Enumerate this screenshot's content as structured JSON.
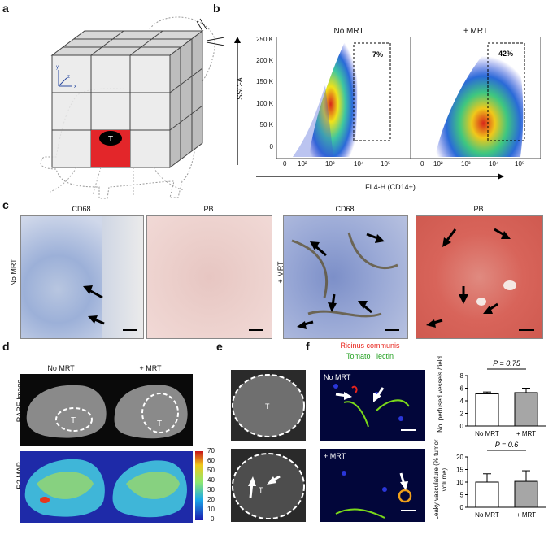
{
  "panels": {
    "a": {
      "letter": "a",
      "tumor_label": "T",
      "axis_labels": [
        "x",
        "y",
        "z"
      ]
    },
    "b": {
      "letter": "b",
      "titles": [
        "No MRT",
        "+ MRT"
      ],
      "gate_pcts": [
        "7%",
        "42%"
      ],
      "y_axis_label": "SSC-A",
      "y_ticks": [
        "250 K",
        "200 K",
        "150 K",
        "100 K",
        "50 K",
        "0"
      ],
      "x_ticks": [
        "0",
        "10²",
        "10³",
        "10⁴",
        "10⁵"
      ],
      "x_axis_label": "FL4-H (CD14+)"
    },
    "c": {
      "letter": "c",
      "titles": [
        "CD68",
        "PB",
        "CD68",
        "PB"
      ],
      "row_left": "No MRT",
      "row_right": "+ MRT"
    },
    "d": {
      "letter": "d",
      "titles": [
        "No MRT",
        "+ MRT"
      ],
      "row1_label": "RARE Image",
      "row2_label": "R2 MAP",
      "tumor_label": "T",
      "colorbar_ticks": [
        "70",
        "60",
        "50",
        "40",
        "30",
        "20",
        "10",
        "0"
      ]
    },
    "e": {
      "letter": "e",
      "tumor_label": "T"
    },
    "f": {
      "letter": "f",
      "stain_line1": "Ricinus communis",
      "stain_line2a": "Tomato",
      "stain_line2b": "lectin",
      "img_labels": [
        "No MRT",
        "+ MRT"
      ],
      "colors": {
        "red_text": "#e8241c",
        "green_text": "#22a020"
      }
    }
  },
  "chart_data": [
    {
      "type": "bar",
      "categories": [
        "No MRT",
        "+ MRT"
      ],
      "values": [
        5.1,
        5.3
      ],
      "errors": [
        0.3,
        0.7
      ],
      "ylabel": "No. perfused vessels /field",
      "ylim": [
        0,
        8
      ],
      "yticks": [
        "8",
        "6",
        "4",
        "2",
        "0"
      ],
      "annotation": "P = 0.75",
      "colors": [
        "#ffffff",
        "#a6a6a6"
      ]
    },
    {
      "type": "bar",
      "categories": [
        "No MRT",
        "+ MRT"
      ],
      "values": [
        10,
        10.3
      ],
      "errors": [
        3.3,
        4.2
      ],
      "ylabel": "Leaky vasculature (% tumor volume)",
      "ylim": [
        0,
        20
      ],
      "yticks": [
        "20",
        "15",
        "10",
        "5",
        "0"
      ],
      "annotation": "P = 0.6",
      "colors": [
        "#ffffff",
        "#a6a6a6"
      ]
    }
  ]
}
